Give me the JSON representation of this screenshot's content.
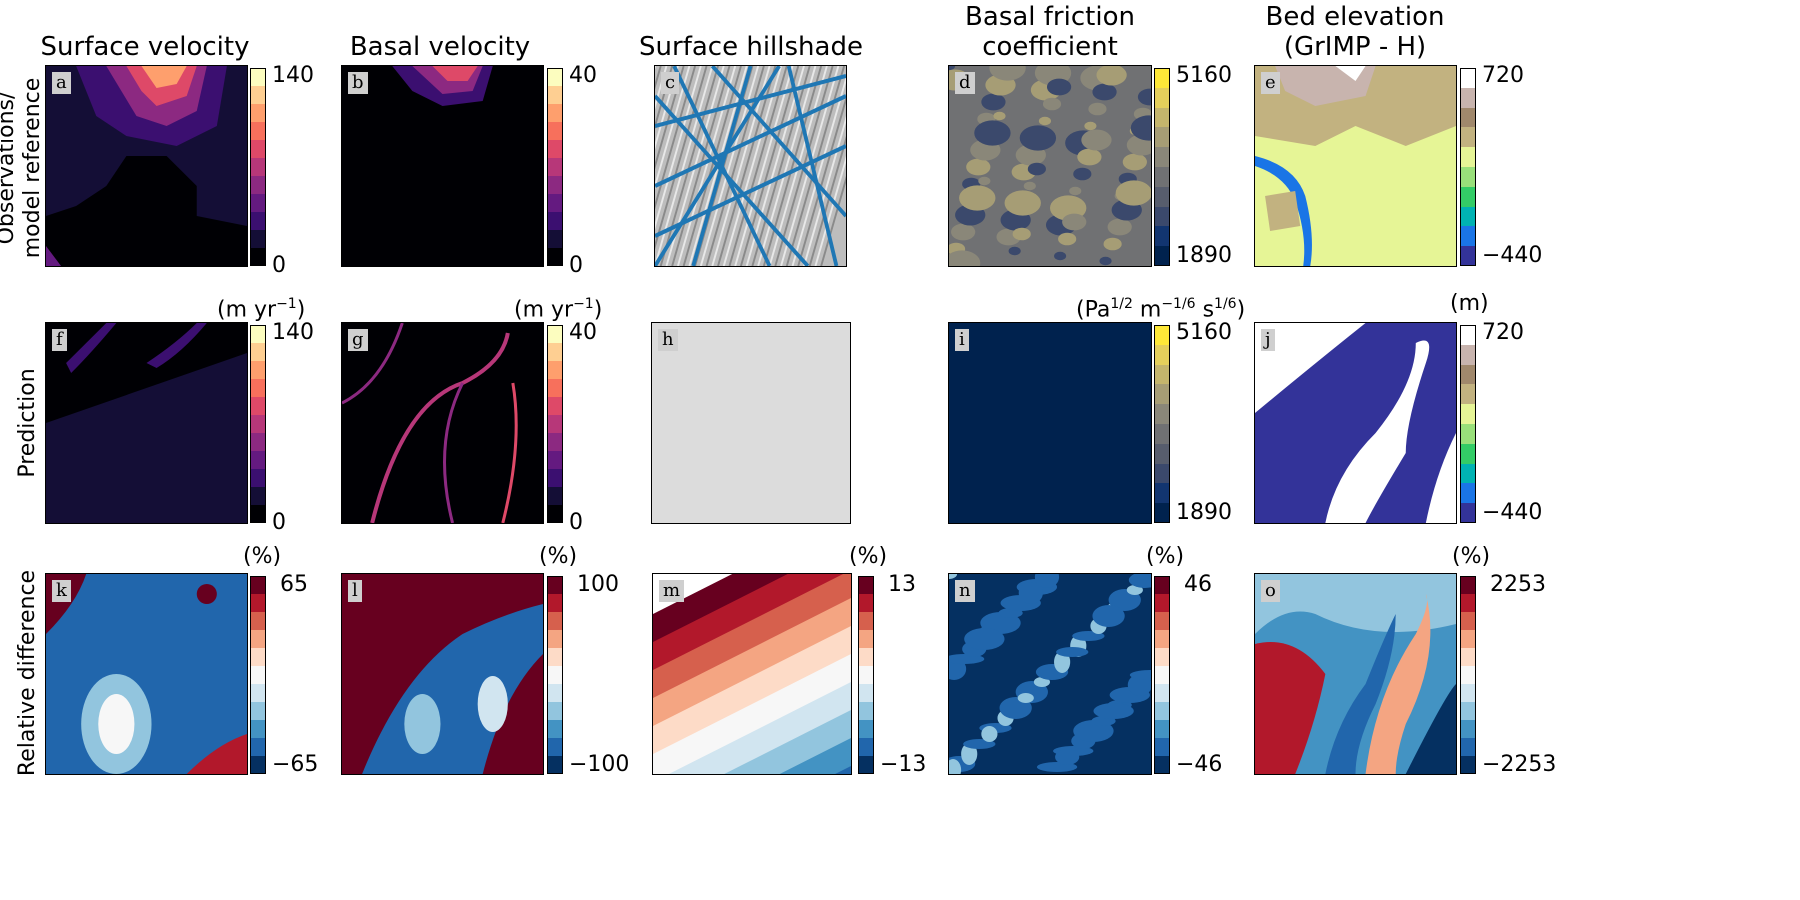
{
  "columns": [
    {
      "title": "Surface velocity"
    },
    {
      "title": "Basal velocity"
    },
    {
      "title": "Surface hillshade"
    },
    {
      "title": "Basal friction\ncoefficient"
    },
    {
      "title": "Bed elevation\n(GrIMP - H)"
    }
  ],
  "rows": [
    {
      "label": "Observations/\nmodel reference"
    },
    {
      "label": "Prediction"
    },
    {
      "label": "Relative difference"
    }
  ],
  "units": {
    "velocity": "(m yr",
    "velocity_exp": "−1",
    "friction_pa": "(Pa",
    "friction_pa_exp": "1/2",
    "friction_m": " m",
    "friction_m_exp": "−1/6",
    "friction_s": " s",
    "friction_s_exp": "1/6",
    "bed": "(m)",
    "percent": "(%)"
  },
  "panels": [
    {
      "id": "a",
      "label": "a"
    },
    {
      "id": "b",
      "label": "b"
    },
    {
      "id": "c",
      "label": "c"
    },
    {
      "id": "d",
      "label": "d"
    },
    {
      "id": "e",
      "label": "e"
    },
    {
      "id": "f",
      "label": "f"
    },
    {
      "id": "g",
      "label": "g"
    },
    {
      "id": "h",
      "label": "h"
    },
    {
      "id": "i",
      "label": "i"
    },
    {
      "id": "j",
      "label": "j"
    },
    {
      "id": "k",
      "label": "k"
    },
    {
      "id": "l",
      "label": "l"
    },
    {
      "id": "m",
      "label": "m"
    },
    {
      "id": "n",
      "label": "n"
    },
    {
      "id": "o",
      "label": "o"
    }
  ],
  "colorbars": {
    "a": {
      "max": "140",
      "min": "0"
    },
    "b": {
      "max": "40",
      "min": "0"
    },
    "d": {
      "max": "5160",
      "min": "1890"
    },
    "e": {
      "max": "720",
      "min": "−440"
    },
    "f": {
      "max": "140",
      "min": "0"
    },
    "g": {
      "max": "40",
      "min": "0"
    },
    "i": {
      "max": "5160",
      "min": "1890"
    },
    "j": {
      "max": "720",
      "min": "−440"
    },
    "k": {
      "max": "65",
      "min": "−65"
    },
    "l": {
      "max": "100",
      "min": "−100"
    },
    "m": {
      "max": "13",
      "min": "−13"
    },
    "n": {
      "max": "46",
      "min": "−46"
    },
    "o": {
      "max": "2253",
      "min": "−2253"
    }
  },
  "colors": {
    "magma": [
      "#000004",
      "#140e36",
      "#3b0f70",
      "#641a80",
      "#8c2981",
      "#b73779",
      "#de4968",
      "#f7705c",
      "#fe9f6d",
      "#fecf92",
      "#fcfdbf"
    ],
    "cividis": [
      "#00224e",
      "#123570",
      "#3b496c",
      "#575d6d",
      "#707173",
      "#8a8779",
      "#a69d75",
      "#c4b56c",
      "#e4cf5b",
      "#fee838"
    ],
    "terrain": [
      "#333399",
      "#1a75e6",
      "#00b2b2",
      "#33cc66",
      "#99e07a",
      "#e6f596",
      "#c2b280",
      "#a0886c",
      "#c8b4ae",
      "#ffffff"
    ],
    "rdbu": [
      "#053061",
      "#2166ac",
      "#4393c3",
      "#92c5de",
      "#d1e5f0",
      "#f7f7f7",
      "#fddbc7",
      "#f4a582",
      "#d6604d",
      "#b2182b",
      "#67001f"
    ],
    "track_blue": "#1f77b4",
    "hillshade_gray": "#dcdcdc"
  }
}
